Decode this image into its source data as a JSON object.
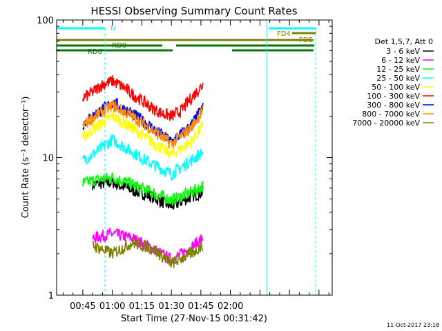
{
  "chart_data": {
    "type": "line",
    "title": "HESSI Observing Summary Count Rates",
    "xlabel": "Start Time (27-Nov-15 00:31:42)",
    "ylabel": "Count Rate (s⁻¹ detector⁻¹)",
    "y_scale": "log",
    "ylim": [
      1,
      100
    ],
    "y_ticks": [
      {
        "value": 1,
        "label": "1"
      },
      {
        "value": 10,
        "label": "10"
      },
      {
        "value": 100,
        "label": "100"
      }
    ],
    "x_range_minutes": [
      31.7,
      171.7
    ],
    "x_ticks": [
      {
        "minute": 45,
        "label": "00:45"
      },
      {
        "minute": 60,
        "label": "01:00"
      },
      {
        "minute": 75,
        "label": "01:15"
      },
      {
        "minute": 90,
        "label": "01:30"
      },
      {
        "minute": 105,
        "label": "01:45"
      },
      {
        "minute": 120,
        "label": "02:00"
      }
    ],
    "legend_title": "Det 1,5,7, Att 0",
    "legend_position": "right",
    "series": [
      {
        "name": "3 - 6 keV",
        "color": "#000000",
        "x": [
          50,
          60,
          70,
          80,
          90,
          100,
          106
        ],
        "y": [
          6.4,
          6.6,
          5.8,
          5.2,
          4.4,
          5.2,
          5.6
        ]
      },
      {
        "name": "6 - 12 keV",
        "color": "#ff00ff",
        "x": [
          50,
          60,
          70,
          80,
          90,
          100,
          106
        ],
        "y": [
          2.6,
          2.8,
          2.6,
          2.2,
          1.8,
          2.2,
          2.6
        ]
      },
      {
        "name": "12 - 25 keV",
        "color": "#00ff00",
        "x": [
          45,
          50,
          60,
          70,
          80,
          90,
          100,
          106
        ],
        "y": [
          6.5,
          6.8,
          7.2,
          6.4,
          5.6,
          4.9,
          5.6,
          6.2
        ]
      },
      {
        "name": "25 - 50 keV",
        "color": "#00ffff",
        "x": [
          45,
          50,
          60,
          70,
          80,
          90,
          100,
          106
        ],
        "y": [
          9.5,
          10.5,
          13.5,
          11,
          9,
          7.6,
          9.5,
          11
        ]
      },
      {
        "name": "50 - 100 keV",
        "color": "#ffff00",
        "x": [
          45,
          50,
          60,
          70,
          80,
          90,
          100,
          106
        ],
        "y": [
          14,
          16,
          20,
          16.5,
          13,
          10.5,
          13,
          17
        ]
      },
      {
        "name": "100 - 300 keV",
        "color": "#ff0000",
        "x": [
          45,
          50,
          55,
          60,
          65,
          70,
          75,
          80,
          85,
          90,
          95,
          100,
          106
        ],
        "y": [
          27,
          30,
          34,
          36,
          33,
          29,
          26,
          23,
          21,
          20,
          22,
          27,
          34
        ]
      },
      {
        "name": "300 - 800 keV",
        "color": "#0000ff",
        "x": [
          45,
          50,
          60,
          70,
          80,
          90,
          100,
          106
        ],
        "y": [
          17.5,
          20,
          25,
          21,
          16.5,
          13,
          17,
          23
        ]
      },
      {
        "name": "800 - 7000 keV",
        "color": "#ff8c00",
        "x": [
          45,
          50,
          60,
          70,
          80,
          90,
          100,
          106
        ],
        "y": [
          17,
          19.5,
          24,
          20,
          16,
          12.5,
          16.5,
          22
        ]
      },
      {
        "name": "7000 - 20000 keV",
        "color": "#808000",
        "x": [
          50,
          60,
          70,
          80,
          90,
          100,
          106
        ],
        "y": [
          2.3,
          2.0,
          2.4,
          2.2,
          1.7,
          2.0,
          2.3
        ]
      }
    ],
    "annotations": [
      {
        "text": "N",
        "color": "#00ffff"
      },
      {
        "text": "FD4",
        "color": "#808000"
      },
      {
        "text": "FD5",
        "color": "#808000"
      },
      {
        "text": "RD0",
        "color": "#007700"
      },
      {
        "text": "RD6",
        "color": "#007700"
      }
    ],
    "timestamp": "11-Oct-2017 23:18"
  }
}
